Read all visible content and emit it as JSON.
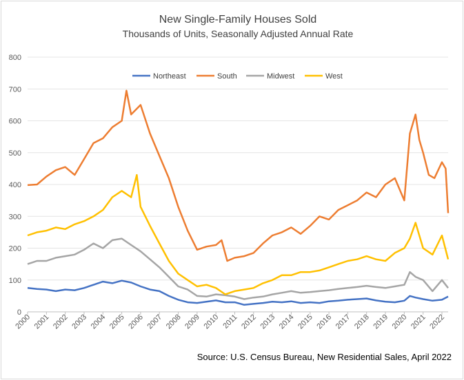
{
  "chart_data": {
    "type": "line",
    "title": "New Single-Family Houses Sold",
    "subtitle": "Thousands of Units, Seasonally Adjusted Annual Rate",
    "source": "Source: U.S. Census Bureau, New Residential Sales, April 2022",
    "ylim": [
      0,
      800
    ],
    "yticks": [
      0,
      100,
      200,
      300,
      400,
      500,
      600,
      700,
      800
    ],
    "xlim": [
      2000,
      2022.33
    ],
    "xticks": [
      "2000",
      "2001",
      "2002",
      "2003",
      "2004",
      "2005",
      "2006",
      "2007",
      "2008",
      "2009",
      "2010",
      "2011",
      "2012",
      "2013",
      "2014",
      "2015",
      "2016",
      "2017",
      "2018",
      "2019",
      "2020",
      "2021",
      "2022"
    ],
    "grid": true,
    "legend_position": "top",
    "series": [
      {
        "name": "Northeast",
        "color": "#4472C4",
        "x": [
          2000,
          2000.5,
          2001,
          2001.5,
          2002,
          2002.5,
          2003,
          2003.5,
          2004,
          2004.5,
          2005,
          2005.5,
          2006,
          2006.5,
          2007,
          2007.5,
          2008,
          2008.5,
          2009,
          2009.5,
          2010,
          2010.5,
          2011,
          2011.5,
          2012,
          2012.5,
          2013,
          2013.5,
          2014,
          2014.5,
          2015,
          2015.5,
          2016,
          2016.5,
          2017,
          2017.5,
          2018,
          2018.5,
          2019,
          2019.5,
          2020,
          2020.3,
          2020.6,
          2021,
          2021.5,
          2022,
          2022.33
        ],
        "values": [
          75,
          72,
          70,
          65,
          70,
          68,
          75,
          85,
          95,
          90,
          98,
          92,
          80,
          70,
          65,
          50,
          38,
          30,
          28,
          32,
          36,
          30,
          30,
          22,
          25,
          28,
          32,
          30,
          33,
          28,
          30,
          28,
          33,
          35,
          38,
          40,
          42,
          36,
          32,
          30,
          35,
          50,
          45,
          40,
          35,
          38,
          48
        ]
      },
      {
        "name": "South",
        "color": "#ED7D31",
        "x": [
          2000,
          2000.5,
          2001,
          2001.5,
          2002,
          2002.5,
          2003,
          2003.5,
          2004,
          2004.5,
          2005,
          2005.25,
          2005.5,
          2006,
          2006.5,
          2007,
          2007.5,
          2008,
          2008.5,
          2009,
          2009.5,
          2010,
          2010.3,
          2010.6,
          2011,
          2011.5,
          2012,
          2012.5,
          2013,
          2013.5,
          2014,
          2014.5,
          2015,
          2015.5,
          2016,
          2016.5,
          2017,
          2017.5,
          2018,
          2018.5,
          2019,
          2019.5,
          2020,
          2020.3,
          2020.6,
          2020.8,
          2021,
          2021.3,
          2021.6,
          2022,
          2022.2,
          2022.33
        ],
        "values": [
          398,
          400,
          425,
          445,
          455,
          430,
          480,
          530,
          545,
          580,
          600,
          695,
          620,
          650,
          560,
          490,
          420,
          330,
          255,
          195,
          205,
          210,
          225,
          160,
          170,
          175,
          185,
          215,
          240,
          250,
          265,
          245,
          270,
          300,
          290,
          320,
          335,
          350,
          375,
          360,
          400,
          420,
          350,
          560,
          620,
          540,
          500,
          430,
          420,
          470,
          450,
          310
        ]
      },
      {
        "name": "Midwest",
        "color": "#A5A5A5",
        "x": [
          2000,
          2000.5,
          2001,
          2001.5,
          2002,
          2002.5,
          2003,
          2003.5,
          2004,
          2004.5,
          2005,
          2005.5,
          2006,
          2006.5,
          2007,
          2007.5,
          2008,
          2008.5,
          2009,
          2009.5,
          2010,
          2010.5,
          2011,
          2011.5,
          2012,
          2012.5,
          2013,
          2013.5,
          2014,
          2014.5,
          2015,
          2015.5,
          2016,
          2016.5,
          2017,
          2017.5,
          2018,
          2018.5,
          2019,
          2019.5,
          2020,
          2020.3,
          2020.6,
          2021,
          2021.5,
          2022,
          2022.33
        ],
        "values": [
          150,
          160,
          160,
          170,
          175,
          180,
          195,
          215,
          200,
          225,
          230,
          210,
          190,
          165,
          140,
          110,
          80,
          70,
          50,
          48,
          55,
          52,
          48,
          40,
          45,
          48,
          55,
          60,
          65,
          60,
          62,
          65,
          68,
          72,
          75,
          78,
          82,
          78,
          75,
          80,
          85,
          125,
          110,
          100,
          65,
          100,
          75
        ]
      },
      {
        "name": "West",
        "color": "#FFC000",
        "x": [
          2000,
          2000.5,
          2001,
          2001.5,
          2002,
          2002.5,
          2003,
          2003.5,
          2004,
          2004.5,
          2005,
          2005.5,
          2005.8,
          2006,
          2006.5,
          2007,
          2007.5,
          2008,
          2008.5,
          2009,
          2009.5,
          2010,
          2010.5,
          2011,
          2011.5,
          2012,
          2012.5,
          2013,
          2013.5,
          2014,
          2014.5,
          2015,
          2015.5,
          2016,
          2016.5,
          2017,
          2017.5,
          2018,
          2018.5,
          2019,
          2019.5,
          2020,
          2020.3,
          2020.6,
          2021,
          2021.5,
          2022,
          2022.33
        ],
        "values": [
          240,
          250,
          255,
          265,
          260,
          275,
          285,
          300,
          320,
          360,
          380,
          360,
          430,
          330,
          270,
          215,
          160,
          120,
          100,
          80,
          85,
          75,
          55,
          65,
          70,
          75,
          90,
          100,
          115,
          115,
          125,
          125,
          130,
          140,
          150,
          160,
          165,
          175,
          165,
          160,
          185,
          200,
          230,
          280,
          200,
          180,
          240,
          165
        ]
      }
    ]
  }
}
